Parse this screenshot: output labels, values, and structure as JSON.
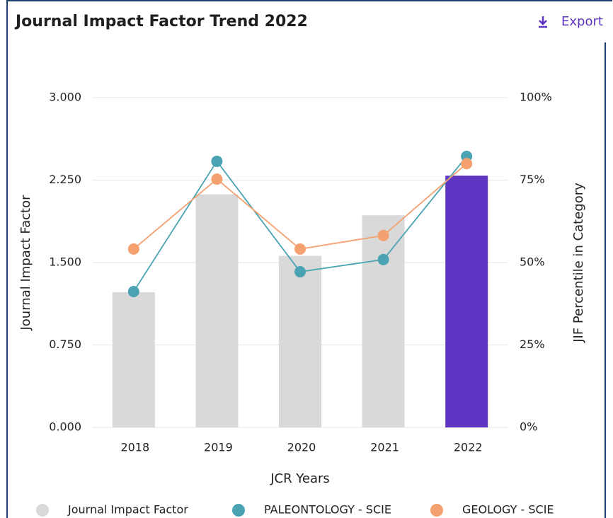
{
  "export_label": "Export",
  "chart_data": {
    "type": "bar",
    "title": "Journal Impact Factor Trend 2022",
    "x_label": "JCR Years",
    "y_label": "Journal Impact Factor",
    "y2_label": "JIF Percentile in Category",
    "categories": [
      "2018",
      "2019",
      "2020",
      "2021",
      "2022"
    ],
    "ylim": [
      0,
      3
    ],
    "yticks": [
      {
        "value": 0,
        "label": "0.000"
      },
      {
        "value": 0.75,
        "label": "0.750"
      },
      {
        "value": 1.5,
        "label": "1.500"
      },
      {
        "value": 2.25,
        "label": "2.250"
      },
      {
        "value": 3,
        "label": "3.000"
      }
    ],
    "y2lim": [
      0,
      100
    ],
    "y2ticks": [
      {
        "value": 0,
        "label": "0%"
      },
      {
        "value": 25,
        "label": "25%"
      },
      {
        "value": 50,
        "label": "50%"
      },
      {
        "value": 75,
        "label": "75%"
      },
      {
        "value": 100,
        "label": "100%"
      }
    ],
    "grid": true,
    "legend": "bottom",
    "series": [
      {
        "name": "Journal Impact Factor",
        "type": "bar",
        "color": "#d9d9d9",
        "colors": [
          "#d9d9d9",
          "#d9d9d9",
          "#d9d9d9",
          "#d9d9d9",
          "#5e34c2"
        ],
        "values": [
          1.23,
          2.12,
          1.56,
          1.93,
          2.29
        ]
      },
      {
        "name": "PALEONTOLOGY - SCIE",
        "type": "line",
        "axis": "y2",
        "color": "#4aa3b3",
        "values": [
          41.2,
          80.7,
          47.2,
          50.9,
          82.2
        ]
      },
      {
        "name": "GEOLOGY - SCIE",
        "type": "line",
        "axis": "y2",
        "color": "#f4a06f",
        "values": [
          54.1,
          75.3,
          54.1,
          58.2,
          80.0
        ]
      }
    ]
  }
}
